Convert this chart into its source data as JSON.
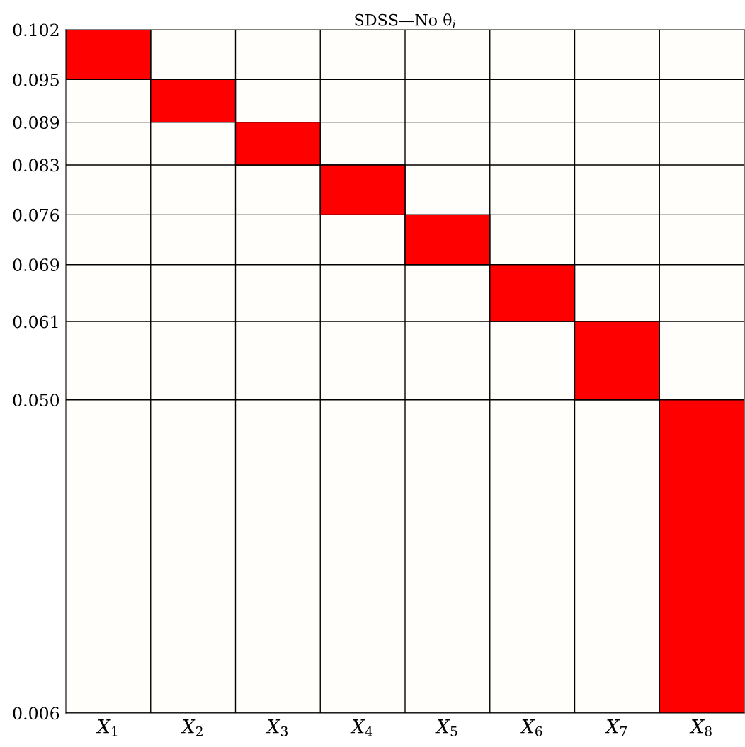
{
  "chart_data": {
    "type": "bar",
    "title": "SDSS—No θ$_{i}$",
    "categories": [
      "X$_{1}$",
      "X$_{2}$",
      "X$_{3}$",
      "X$_{4}$",
      "X$_{5}$",
      "X$_{6}$",
      "X$_{7}$",
      "X$_{8}$"
    ],
    "base": [
      0.095,
      0.089,
      0.083,
      0.076,
      0.069,
      0.061,
      0.05,
      0.006
    ],
    "values": [
      0.007,
      0.006,
      0.006,
      0.007,
      0.007,
      0.008,
      0.011,
      0.044
    ],
    "color": "#ff0000",
    "ylim": [
      0.006,
      0.102
    ],
    "yticks": [
      {
        "value": 0.102,
        "label": "0.102"
      },
      {
        "value": 0.095,
        "label": "0.095"
      },
      {
        "value": 0.089,
        "label": "0.089"
      },
      {
        "value": 0.083,
        "label": "0.083"
      },
      {
        "value": 0.076,
        "label": "0.076"
      },
      {
        "value": 0.069,
        "label": "0.069"
      },
      {
        "value": 0.061,
        "label": "0.061"
      },
      {
        "value": 0.05,
        "label": "0.050"
      },
      {
        "value": 0.006,
        "label": "0.006"
      }
    ],
    "grid": true
  }
}
